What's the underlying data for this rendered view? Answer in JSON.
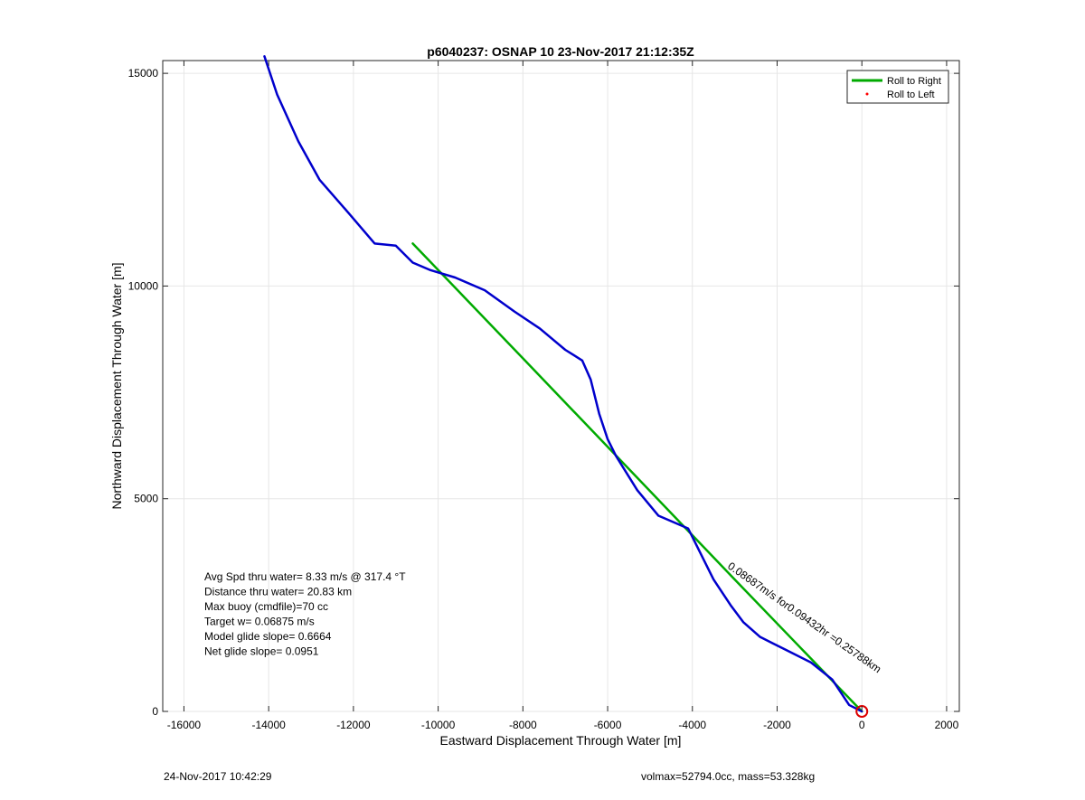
{
  "chart_data": {
    "type": "line",
    "title": "p6040237: OSNAP 10 23-Nov-2017 21:12:35Z",
    "xlabel": "Eastward Displacement Through Water [m]",
    "ylabel": "Northward Displacement Through Water [m]",
    "xlim": [
      -16500,
      2300
    ],
    "ylim": [
      0,
      15300
    ],
    "xticks": [
      -16000,
      -14000,
      -12000,
      -10000,
      -8000,
      -6000,
      -4000,
      -2000,
      0,
      2000
    ],
    "yticks": [
      0,
      5000,
      10000,
      15000
    ],
    "grid": true,
    "legend_position": "top-right",
    "legend": [
      {
        "label": "Roll to Right",
        "color": "#00aa00",
        "style": "line"
      },
      {
        "label": "Roll to Left",
        "color": "#ff0000",
        "style": "dot"
      }
    ],
    "series": [
      {
        "color": "#0000cc",
        "x": [
          -14100,
          -13800,
          -13300,
          -12800,
          -12100,
          -11500,
          -11000,
          -10600,
          -10200,
          -9600,
          -8900,
          -8200,
          -7600,
          -7000,
          -6600,
          -6400,
          -6200,
          -6000,
          -5800,
          -5300,
          -4800,
          -4100,
          -3900,
          -3500,
          -3100,
          -2800,
          -2400,
          -2100,
          -1800,
          -1200,
          -700,
          -300,
          0
        ],
        "y": [
          15400,
          14500,
          13400,
          12500,
          11700,
          11000,
          10950,
          10550,
          10380,
          10200,
          9900,
          9400,
          9000,
          8500,
          8250,
          7800,
          7000,
          6400,
          6000,
          5200,
          4600,
          4300,
          3900,
          3100,
          2500,
          2100,
          1750,
          1600,
          1450,
          1150,
          750,
          150,
          0
        ]
      },
      {
        "color": "#00aa00",
        "x": [
          -10600,
          -8000,
          -5500,
          -3000,
          -1500,
          0
        ],
        "y": [
          11000,
          8300,
          5700,
          3100,
          1550,
          0
        ]
      }
    ],
    "start_marker": {
      "x": 0,
      "y": 0,
      "color": "#dd0000"
    },
    "stats_text": [
      "Avg Spd thru water=  8.33 m/s @ 317.4 °T",
      "Distance thru water= 20.83 km",
      "Max buoy (cmdfile)=70 cc",
      "Target w= 0.06875 m/s",
      "Model glide slope= 0.6664",
      "Net glide slope= 0.0951"
    ],
    "current_annotation": "0.08687m/s for0.09432hr =0.25788km",
    "footer_left": "24-Nov-2017 10:42:29",
    "footer_right": "volmax=52794.0cc, mass=53.328kg"
  }
}
